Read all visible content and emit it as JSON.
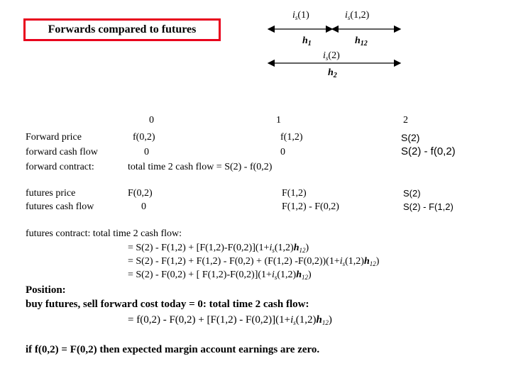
{
  "title": "Forwards compared to futures",
  "colors": {
    "title_border": "#e8001c"
  },
  "timeline": {
    "is1": {
      "pre": "i",
      "sub": "s",
      "post": "(1)"
    },
    "is12": {
      "pre": "i",
      "sub": "s",
      "post": "(1,2)"
    },
    "h1": {
      "pre": "h",
      "sub": "1"
    },
    "h12": {
      "pre": "h",
      "sub": "12"
    },
    "is2": {
      "pre": "i",
      "sub": "s",
      "post": "(2)"
    },
    "h2": {
      "pre": "h",
      "sub": "2"
    }
  },
  "dates": [
    "0",
    "1",
    "2"
  ],
  "forward": {
    "labels": [
      "Forward price",
      "forward cash flow",
      "forward contract:"
    ],
    "t0": [
      "f(0,2)",
      "0"
    ],
    "t1": [
      "f(1,2)",
      "0"
    ],
    "total": "total time 2 cash flow = S(2) - f(0,2)",
    "t2": [
      "S(2)",
      "S(2) - f(0,2)"
    ]
  },
  "futures": {
    "labels": [
      "futures price",
      "futures cash flow"
    ],
    "t0": [
      "F(0,2)",
      "0"
    ],
    "t1": [
      "F(1,2)",
      "F(1,2) - F(0,2)"
    ],
    "t2": [
      "S(2)",
      "S(2) - F(1,2)"
    ]
  },
  "contract": {
    "header": "futures contract:   total time 2 cash flow:",
    "line1": {
      "a": "=  S(2) - F(1,2) +   [F(1,2)-F(0,2)](1+",
      "i": "i",
      "s": "s",
      "b": "(1,2)",
      "h": "h",
      "hs": "12",
      "c": ")"
    },
    "line2": {
      "a": "=  S(2) - F(1,2) + F(1,2) - F(0,2)   +   (F(1,2) -F(0,2))(1+",
      "i": "i",
      "s": "s",
      "b": "(1,2)",
      "h": "h",
      "hs": "12",
      "c": ")"
    },
    "line3": {
      "a": "= S(2) - F(0,2)      +  [ F(1,2)-F(0,2)](1+",
      "i": "i",
      "s": "s",
      "b": "(1,2)",
      "h": "h",
      "hs": "12",
      "c": ")"
    }
  },
  "position": {
    "heading": "Position:",
    "line1": "buy futures, sell forward cost today = 0:   total time 2  cash flow:",
    "line2": {
      "a": "=  f(0,2) - F(0,2)  +  [F(1,2) - F(0,2)](1+",
      "i": "i",
      "s": "s",
      "b": "(1,2)",
      "h": "h",
      "hs": "12",
      "c": ")"
    }
  },
  "conclusion": "if f(0,2) = F(0,2) then expected margin account earnings are zero."
}
